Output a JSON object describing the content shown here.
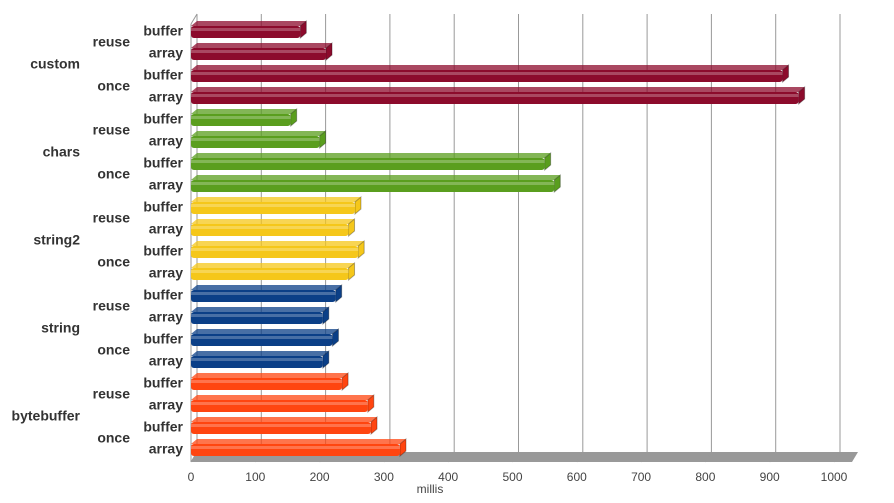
{
  "chart_data": {
    "type": "bar",
    "orientation": "horizontal",
    "xlabel": "millis",
    "xlim": [
      0,
      1000
    ],
    "xticks": [
      0,
      100,
      200,
      300,
      400,
      500,
      600,
      700,
      800,
      900,
      1000
    ],
    "grid": true,
    "groups": [
      {
        "name": "custom",
        "color": "#8c0b2c",
        "subgroups": [
          {
            "name": "reuse",
            "categories": [
              "buffer",
              "array"
            ],
            "values": [
              170,
              210
            ]
          },
          {
            "name": "once",
            "categories": [
              "buffer",
              "array"
            ],
            "values": [
              920,
              945
            ]
          }
        ]
      },
      {
        "name": "chars",
        "color": "#5a9e1e",
        "subgroups": [
          {
            "name": "reuse",
            "categories": [
              "buffer",
              "array"
            ],
            "values": [
              155,
              200
            ]
          },
          {
            "name": "once",
            "categories": [
              "buffer",
              "array"
            ],
            "values": [
              550,
              565
            ]
          }
        ]
      },
      {
        "name": "string2",
        "color": "#f5c71a",
        "subgroups": [
          {
            "name": "reuse",
            "categories": [
              "buffer",
              "array"
            ],
            "values": [
              255,
              245
            ]
          },
          {
            "name": "once",
            "categories": [
              "buffer",
              "array"
            ],
            "values": [
              260,
              245
            ]
          }
        ]
      },
      {
        "name": "string",
        "color": "#0b3f87",
        "subgroups": [
          {
            "name": "reuse",
            "categories": [
              "buffer",
              "array"
            ],
            "values": [
              225,
              205
            ]
          },
          {
            "name": "once",
            "categories": [
              "buffer",
              "array"
            ],
            "values": [
              220,
              205
            ]
          }
        ]
      },
      {
        "name": "bytebuffer",
        "color": "#ff4510",
        "subgroups": [
          {
            "name": "reuse",
            "categories": [
              "buffer",
              "array"
            ],
            "values": [
              235,
              275
            ]
          },
          {
            "name": "once",
            "categories": [
              "buffer",
              "array"
            ],
            "values": [
              280,
              325
            ]
          }
        ]
      }
    ]
  }
}
